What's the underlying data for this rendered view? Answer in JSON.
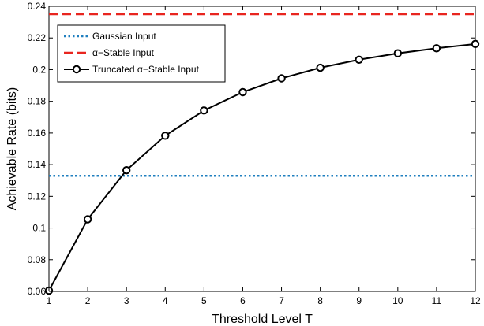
{
  "chart_data": {
    "type": "line",
    "title": "",
    "xlabel": "Threshold Level T",
    "ylabel": "Achievable Rate (bits)",
    "xlim": [
      1,
      12
    ],
    "ylim": [
      0.06,
      0.24
    ],
    "xticks": [
      "1",
      "2",
      "3",
      "4",
      "5",
      "6",
      "7",
      "8",
      "9",
      "10",
      "11",
      "12"
    ],
    "yticks": [
      "0.06",
      "0.08",
      "0.1",
      "0.12",
      "0.14",
      "0.16",
      "0.18",
      "0.2",
      "0.22",
      "0.24"
    ],
    "grid": false,
    "legend_position": "top-left",
    "series": [
      {
        "name": "Gaussian Input",
        "style": "dotted",
        "color": "#1f7fbf",
        "x": [
          1,
          12
        ],
        "values": [
          0.133,
          0.133
        ]
      },
      {
        "name": "α−Stable Input",
        "style": "dashed",
        "color": "#e8251f",
        "x": [
          1,
          12
        ],
        "values": [
          0.235,
          0.235
        ]
      },
      {
        "name": "Truncated α−Stable Input",
        "style": "solid-circle-markers",
        "color": "#000000",
        "x": [
          1,
          2,
          3,
          4,
          5,
          6,
          7,
          8,
          9,
          10,
          11,
          12
        ],
        "values": [
          0.0605,
          0.1055,
          0.1365,
          0.1583,
          0.1742,
          0.1858,
          0.1945,
          0.2012,
          0.2063,
          0.2103,
          0.2135,
          0.2162
        ]
      }
    ]
  }
}
